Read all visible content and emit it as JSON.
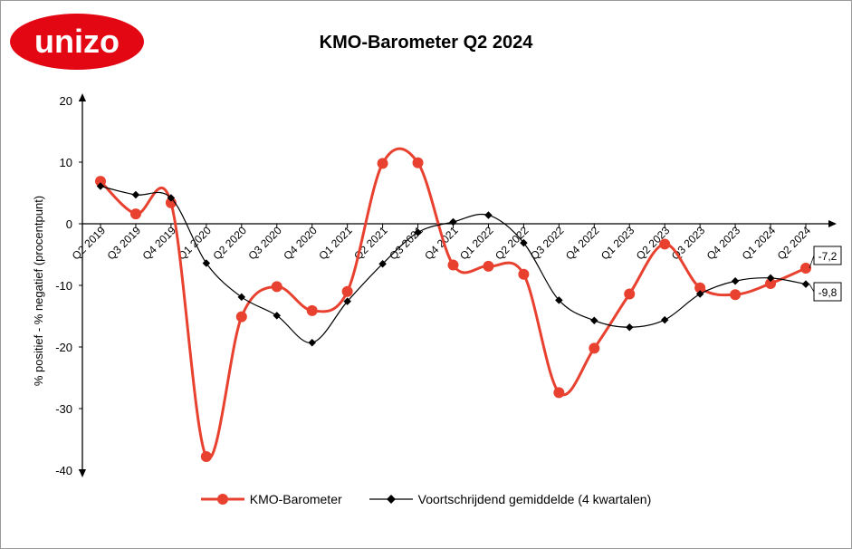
{
  "logo": {
    "text": "unizo",
    "color": "#e30613"
  },
  "chart_data": {
    "type": "line",
    "title": "KMO-Barometer Q2 2024",
    "ylabel": "% positief - % negatief (procentpunt)",
    "xlabel": "",
    "ylim": [
      -40,
      20
    ],
    "yticks": [
      20,
      10,
      0,
      -10,
      -20,
      -30,
      -40
    ],
    "categories": [
      "Q2 2019",
      "Q3 2019",
      "Q4 2019",
      "Q1 2020",
      "Q2 2020",
      "Q3 2020",
      "Q4 2020",
      "Q1 2021",
      "Q2 2021",
      "Q3 2021",
      "Q4 2021",
      "Q1 2022",
      "Q2 2022",
      "Q3 2022",
      "Q4 2022",
      "Q1 2023",
      "Q2 2023",
      "Q3 2023",
      "Q4 2023",
      "Q1 2024",
      "Q2 2024"
    ],
    "series": [
      {
        "name": "KMO-Barometer",
        "color": "#e8412f",
        "values": [
          6.9,
          1.6,
          3.4,
          -37.8,
          -15.1,
          -10.2,
          -14.1,
          -11.0,
          9.8,
          9.9,
          -6.7,
          -6.9,
          -8.2,
          -27.4,
          -20.2,
          -11.4,
          -3.3,
          -10.4,
          -11.5,
          -9.7,
          -7.2
        ],
        "end_label": "-7,2"
      },
      {
        "name": "Voortschrijdend gemiddelde (4 kwartalen)",
        "color": "#000000",
        "values": [
          6.1,
          4.7,
          4.2,
          -6.4,
          -11.9,
          -14.9,
          -19.3,
          -12.6,
          -6.5,
          -1.4,
          0.3,
          1.4,
          -3.1,
          -12.4,
          -15.7,
          -16.8,
          -15.6,
          -11.4,
          -9.3,
          -8.8,
          -9.8
        ],
        "end_label": "-9,8"
      }
    ],
    "grid": false,
    "legend": "bottom"
  }
}
